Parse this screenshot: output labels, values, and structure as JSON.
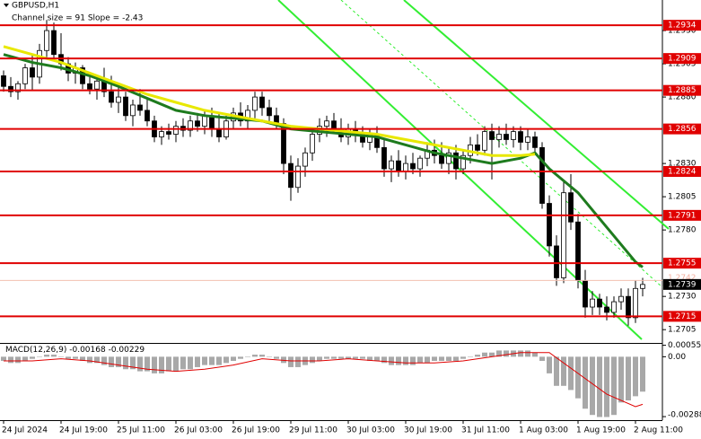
{
  "chart_data": {
    "type": "candlestick",
    "title": "GBPUSD,H1",
    "subtitle": "Channel size = 91 Slope = -2.43",
    "categories": [
      "24 Jul 2024",
      null,
      null,
      null,
      null,
      null,
      null,
      null,
      "24 Jul 19:00",
      null,
      null,
      null,
      null,
      null,
      null,
      null,
      "25 Jul 11:00",
      null,
      null,
      null,
      null,
      null,
      null,
      null,
      "26 Jul 03:00",
      null,
      null,
      null,
      null,
      null,
      null,
      null,
      "26 Jul 19:00",
      null,
      null,
      null,
      null,
      null,
      null,
      null,
      "29 Jul 11:00",
      null,
      null,
      null,
      null,
      null,
      null,
      null,
      "30 Jul 03:00",
      null,
      null,
      null,
      null,
      null,
      null,
      null,
      "30 Jul 19:00",
      null,
      null,
      null,
      null,
      null,
      null,
      null,
      "31 Jul 11:00",
      null,
      null,
      null,
      null,
      null,
      null,
      null,
      "1 Aug 03:00",
      null,
      null,
      null,
      null,
      null,
      null,
      null,
      "1 Aug 19:00",
      null,
      null,
      null,
      null,
      null,
      null,
      null,
      "2 Aug 11:00",
      null
    ],
    "ohlc": [
      [
        1.2896,
        1.29,
        1.2884,
        1.2888
      ],
      [
        1.2888,
        1.2895,
        1.288,
        1.2884
      ],
      [
        1.2884,
        1.2892,
        1.2878,
        1.289
      ],
      [
        1.289,
        1.2905,
        1.2886,
        1.2902
      ],
      [
        1.2902,
        1.2912,
        1.2885,
        1.2895
      ],
      [
        1.2895,
        1.292,
        1.289,
        1.2915
      ],
      [
        1.2915,
        1.2938,
        1.291,
        1.293
      ],
      [
        1.293,
        1.2936,
        1.2908,
        1.2912
      ],
      [
        1.2912,
        1.2928,
        1.29,
        1.2905
      ],
      [
        1.2905,
        1.291,
        1.2892,
        1.2898
      ],
      [
        1.2898,
        1.2906,
        1.289,
        1.2902
      ],
      [
        1.2902,
        1.2904,
        1.2886,
        1.289
      ],
      [
        1.289,
        1.2898,
        1.2882,
        1.2886
      ],
      [
        1.2886,
        1.2895,
        1.2878,
        1.2892
      ],
      [
        1.2892,
        1.2902,
        1.288,
        1.2884
      ],
      [
        1.2884,
        1.2896,
        1.2872,
        1.2876
      ],
      [
        1.2876,
        1.289,
        1.2868,
        1.288
      ],
      [
        1.288,
        1.2884,
        1.2862,
        1.2866
      ],
      [
        1.2866,
        1.2878,
        1.2858,
        1.2874
      ],
      [
        1.2874,
        1.2886,
        1.2866,
        1.287
      ],
      [
        1.287,
        1.2878,
        1.2858,
        1.2862
      ],
      [
        1.2862,
        1.2866,
        1.2846,
        1.285
      ],
      [
        1.285,
        1.2858,
        1.2844,
        1.2854
      ],
      [
        1.2854,
        1.286,
        1.2848,
        1.2852
      ],
      [
        1.2852,
        1.2862,
        1.2846,
        1.2858
      ],
      [
        1.2858,
        1.2864,
        1.285,
        1.2855
      ],
      [
        1.2855,
        1.2866,
        1.285,
        1.2862
      ],
      [
        1.2862,
        1.2868,
        1.2854,
        1.2858
      ],
      [
        1.2858,
        1.287,
        1.2852,
        1.2866
      ],
      [
        1.2866,
        1.2872,
        1.285,
        1.2856
      ],
      [
        1.2856,
        1.2868,
        1.2846,
        1.285
      ],
      [
        1.285,
        1.2866,
        1.2848,
        1.2862
      ],
      [
        1.2862,
        1.2872,
        1.2856,
        1.2868
      ],
      [
        1.2868,
        1.2876,
        1.2858,
        1.2862
      ],
      [
        1.2862,
        1.2874,
        1.2856,
        1.287
      ],
      [
        1.287,
        1.2884,
        1.2864,
        1.288
      ],
      [
        1.288,
        1.2884,
        1.2866,
        1.2872
      ],
      [
        1.2872,
        1.2878,
        1.286,
        1.2866
      ],
      [
        1.2866,
        1.2872,
        1.2856,
        1.286
      ],
      [
        1.286,
        1.2864,
        1.2822,
        1.283
      ],
      [
        1.283,
        1.2836,
        1.2802,
        1.2812
      ],
      [
        1.2812,
        1.2834,
        1.2808,
        1.2828
      ],
      [
        1.2828,
        1.2842,
        1.282,
        1.2838
      ],
      [
        1.2838,
        1.2856,
        1.2832,
        1.2852
      ],
      [
        1.2852,
        1.2864,
        1.2846,
        1.2858
      ],
      [
        1.2858,
        1.2866,
        1.285,
        1.2862
      ],
      [
        1.2862,
        1.2868,
        1.2852,
        1.2856
      ],
      [
        1.2856,
        1.2864,
        1.2846,
        1.285
      ],
      [
        1.285,
        1.286,
        1.2844,
        1.2856
      ],
      [
        1.2856,
        1.2862,
        1.2846,
        1.2852
      ],
      [
        1.2852,
        1.2858,
        1.2842,
        1.2846
      ],
      [
        1.2846,
        1.2856,
        1.284,
        1.2852
      ],
      [
        1.2852,
        1.2858,
        1.2838,
        1.2842
      ],
      [
        1.2842,
        1.2848,
        1.282,
        1.2826
      ],
      [
        1.2826,
        1.2836,
        1.2816,
        1.2832
      ],
      [
        1.2832,
        1.284,
        1.282,
        1.2824
      ],
      [
        1.2824,
        1.2836,
        1.2818,
        1.283
      ],
      [
        1.283,
        1.2838,
        1.2822,
        1.2826
      ],
      [
        1.2826,
        1.2836,
        1.282,
        1.2834
      ],
      [
        1.2834,
        1.2846,
        1.2828,
        1.284
      ],
      [
        1.284,
        1.2848,
        1.283,
        1.2836
      ],
      [
        1.2836,
        1.2846,
        1.2826,
        1.283
      ],
      [
        1.283,
        1.2842,
        1.2822,
        1.2838
      ],
      [
        1.2838,
        1.2844,
        1.2818,
        1.2826
      ],
      [
        1.2826,
        1.284,
        1.2822,
        1.2836
      ],
      [
        1.2836,
        1.285,
        1.283,
        1.2844
      ],
      [
        1.2844,
        1.2852,
        1.2836,
        1.284
      ],
      [
        1.284,
        1.2858,
        1.2836,
        1.2854
      ],
      [
        1.2854,
        1.286,
        1.2818,
        1.2848
      ],
      [
        1.2848,
        1.2858,
        1.2842,
        1.2852
      ],
      [
        1.2852,
        1.286,
        1.2844,
        1.2848
      ],
      [
        1.2848,
        1.2858,
        1.2842,
        1.2854
      ],
      [
        1.2854,
        1.2858,
        1.284,
        1.2846
      ],
      [
        1.2846,
        1.2856,
        1.284,
        1.285
      ],
      [
        1.285,
        1.2854,
        1.2838,
        1.2842
      ],
      [
        1.2842,
        1.2846,
        1.2796,
        1.28
      ],
      [
        1.28,
        1.2806,
        1.276,
        1.2768
      ],
      [
        1.2768,
        1.2776,
        1.2738,
        1.2744
      ],
      [
        1.2744,
        1.2816,
        1.274,
        1.2808
      ],
      [
        1.2808,
        1.2822,
        1.278,
        1.2786
      ],
      [
        1.2786,
        1.2792,
        1.2736,
        1.2742
      ],
      [
        1.2742,
        1.275,
        1.2714,
        1.2722
      ],
      [
        1.2722,
        1.2734,
        1.2716,
        1.2728
      ],
      [
        1.2728,
        1.2732,
        1.2716,
        1.2722
      ],
      [
        1.2722,
        1.273,
        1.2712,
        1.2718
      ],
      [
        1.2718,
        1.273,
        1.2714,
        1.2726
      ],
      [
        1.2726,
        1.2736,
        1.272,
        1.273
      ],
      [
        1.273,
        1.2736,
        1.2708,
        1.2714
      ],
      [
        1.2714,
        1.2742,
        1.271,
        1.2736
      ],
      [
        1.2736,
        1.2744,
        1.273,
        1.2739
      ]
    ],
    "moving_averages": [
      {
        "color": "#1e7b1e",
        "x": [
          0,
          4,
          8,
          12,
          16,
          20,
          24,
          28,
          32,
          36,
          40,
          44,
          48,
          52,
          56,
          60,
          64,
          68,
          72,
          74,
          76,
          80,
          84,
          88,
          89
        ],
        "values": [
          1.2912,
          1.2906,
          1.2902,
          1.2896,
          1.2888,
          1.2879,
          1.287,
          1.2866,
          1.2864,
          1.2862,
          1.2856,
          1.2854,
          1.2852,
          1.285,
          1.2844,
          1.2838,
          1.2834,
          1.283,
          1.2834,
          1.2838,
          1.2826,
          1.2808,
          1.2782,
          1.2756,
          1.2752
        ]
      },
      {
        "color": "#e8e800",
        "x": [
          0,
          4,
          8,
          12,
          16,
          20,
          24,
          28,
          32,
          36,
          40,
          44,
          48,
          52,
          56,
          60,
          64,
          68,
          72,
          74
        ],
        "values": [
          1.2918,
          1.2912,
          1.2906,
          1.2898,
          1.289,
          1.2882,
          1.2876,
          1.287,
          1.2866,
          1.2862,
          1.2858,
          1.2856,
          1.2854,
          1.2852,
          1.2848,
          1.2844,
          1.284,
          1.2836,
          1.2836,
          1.2837
        ]
      }
    ],
    "levels": {
      "color": "#e00000",
      "values": [
        1.2934,
        1.2909,
        1.2885,
        1.2856,
        1.2824,
        1.2791,
        1.2755,
        1.2715
      ]
    },
    "last_price": 1.2739,
    "prev_price": 1.2742,
    "ylim": [
      1.2695,
      1.2953
    ],
    "yticks": [
      {
        "value": 1.293,
        "label": "1.2930"
      },
      {
        "value": 1.2905,
        "label": "1.2905"
      },
      {
        "value": 1.288,
        "label": "1.2880"
      },
      {
        "value": 1.283,
        "label": "1.2830"
      },
      {
        "value": 1.2805,
        "label": "1.2805"
      },
      {
        "value": 1.278,
        "label": "1.2780"
      },
      {
        "value": 1.273,
        "label": "1.2730"
      },
      {
        "value": 1.2705,
        "label": "1.2705"
      }
    ],
    "macd": {
      "label": "MACD(12,26,9)",
      "main": -0.00168,
      "signal": -0.00229,
      "values": [
        -0.0002,
        -0.0003,
        -0.0003,
        -0.0002,
        -0.0001,
        0,
        0.0001,
        0.0001,
        0,
        -0.0001,
        -0.0001,
        -0.0002,
        -0.0003,
        -0.0003,
        -0.0004,
        -0.0005,
        -0.0005,
        -0.0006,
        -0.0006,
        -0.0007,
        -0.0007,
        -0.0008,
        -0.0008,
        -0.0007,
        -0.0007,
        -0.0006,
        -0.0006,
        -0.0005,
        -0.0004,
        -0.0004,
        -0.0004,
        -0.0003,
        -0.0002,
        -0.0001,
        0,
        0.0001,
        0.0001,
        0,
        -0.0001,
        -0.0003,
        -0.0005,
        -0.0005,
        -0.0004,
        -0.0003,
        -0.0002,
        -0.0001,
        -0.0001,
        -0.0001,
        -0.0001,
        -0.0001,
        -0.0001,
        -0.0002,
        -0.0002,
        -0.0003,
        -0.0004,
        -0.0004,
        -0.0004,
        -0.0004,
        -0.0003,
        -0.0003,
        -0.0002,
        -0.0002,
        -0.0002,
        -0.0002,
        -0.0001,
        0,
        0.0001,
        0.0002,
        0.0002,
        0.0003,
        0.0003,
        0.0003,
        0.0003,
        0.0003,
        0.0002,
        -0.0002,
        -0.0008,
        -0.0014,
        -0.0014,
        -0.0016,
        -0.002,
        -0.0025,
        -0.0028,
        -0.0029,
        -0.0029,
        -0.0028,
        -0.0022,
        -0.0021,
        -0.0019,
        -0.00168
      ],
      "signal_line": {
        "color": "#e00000",
        "x": [
          0,
          4,
          8,
          12,
          16,
          20,
          24,
          28,
          32,
          36,
          40,
          44,
          48,
          52,
          56,
          60,
          64,
          68,
          72,
          76,
          80,
          84,
          88,
          89
        ],
        "values": [
          -0.0002,
          -0.0002,
          -0.0001,
          -0.0002,
          -0.0004,
          -0.0006,
          -0.0007,
          -0.0006,
          -0.0004,
          -0.0001,
          -0.0002,
          -0.0002,
          -0.0001,
          -0.0002,
          -0.0003,
          -0.0003,
          -0.0002,
          0,
          0.0002,
          0.0002,
          -0.0008,
          -0.0018,
          -0.0024,
          -0.00229
        ]
      },
      "ylim": [
        -0.00305,
        0.00062
      ],
      "yticks": [
        {
          "value": 0.00055,
          "label": "0.00055"
        },
        {
          "value": 0,
          "label": "0.00"
        },
        -0.00288
      ]
    }
  }
}
